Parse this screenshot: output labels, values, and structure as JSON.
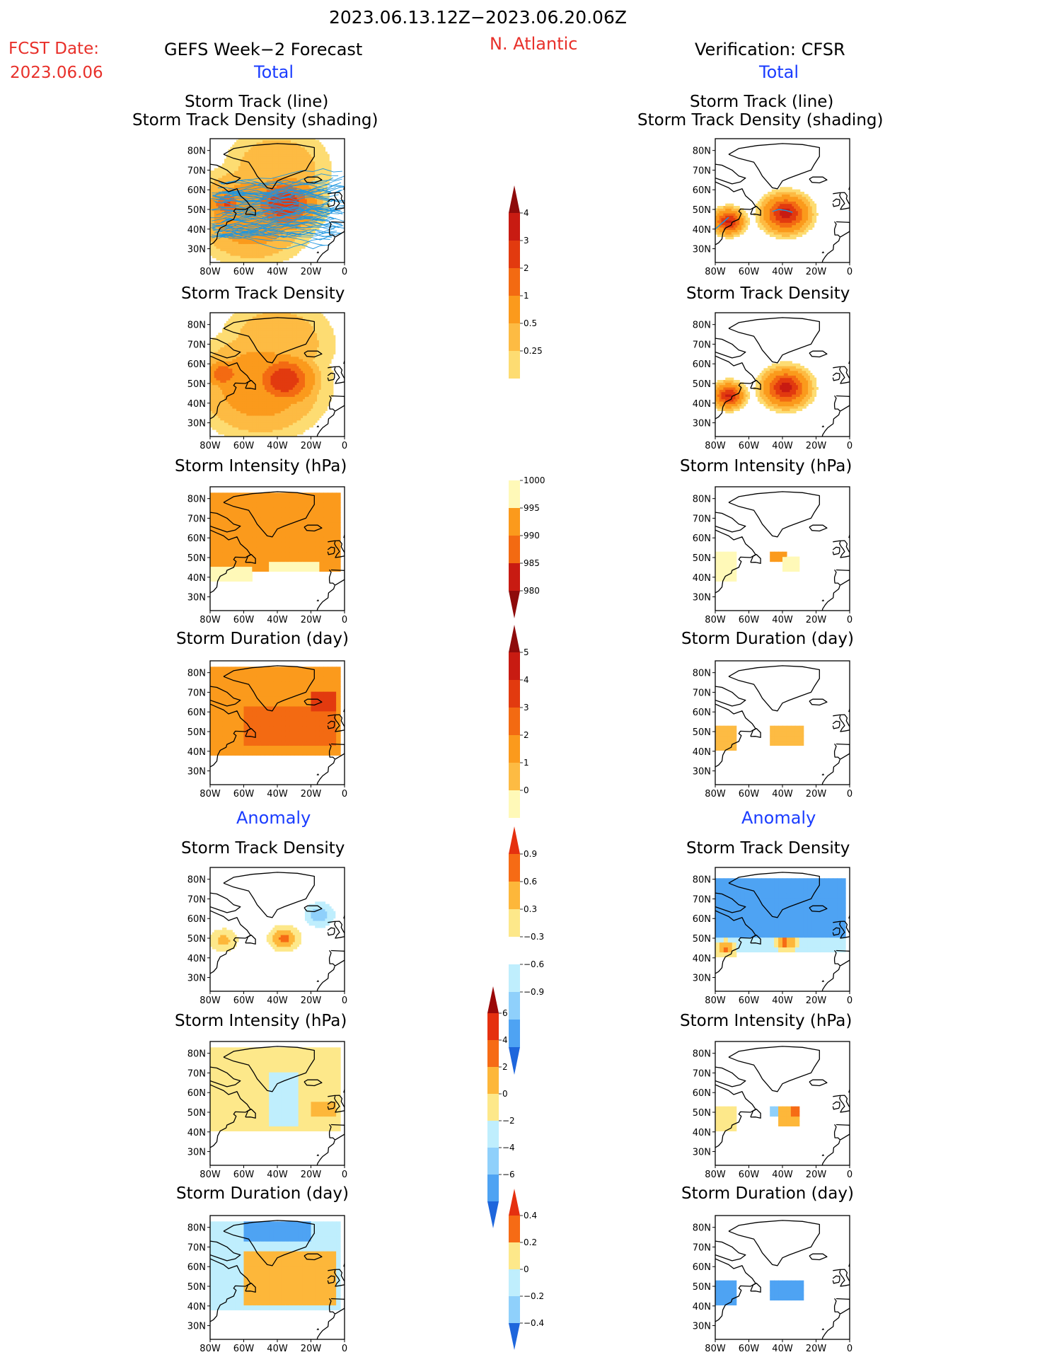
{
  "header": {
    "period": "2023.06.13.12Z−2023.06.20.06Z",
    "region": "N. Atlantic",
    "fcst_label": "FCST Date:",
    "fcst_date": "2023.06.06",
    "left_title": "GEFS Week−2 Forecast",
    "right_title": "Verification: CFSR",
    "total_label": "Total",
    "anomaly_label": "Anomaly"
  },
  "panel_titles": {
    "track_line": "Storm Track (line)",
    "track_shading": "Storm Track Density (shading)",
    "density": "Storm Track Density",
    "intensity": "Storm Intensity (hPa)",
    "duration": "Storm Duration (day)"
  },
  "axes": {
    "lat_ticks": [
      "80N",
      "70N",
      "60N",
      "50N",
      "40N",
      "30N"
    ],
    "lon_ticks": [
      "80W",
      "60W",
      "40W",
      "20W",
      "0"
    ],
    "lat_range": [
      23,
      86
    ],
    "lon_range": [
      -80,
      0
    ]
  },
  "colors": {
    "seq": [
      "#fff9b8",
      "#fddc72",
      "#fdbb43",
      "#fb9a1c",
      "#f36a12",
      "#e23a0f",
      "#c81b12",
      "#8e0b0b"
    ],
    "div_pos": [
      "#fde88a",
      "#fdb73a",
      "#f66b15",
      "#e5300f",
      "#9a0808"
    ],
    "div_neg": [
      "#bfeefd",
      "#8fd0fb",
      "#4ea3f3",
      "#1e66dc"
    ],
    "track": "#1e96e0"
  },
  "chart_data": [
    {
      "type": "heatmap",
      "name": "total_track_density_lines_gefs",
      "title": "Storm Track (line)",
      "subtitle": "Storm Track Density (shading)",
      "scale": "density",
      "blobs": [
        {
          "lon": -36,
          "lat": 53,
          "r": 18,
          "v": 4
        },
        {
          "lon": -70,
          "lat": 53,
          "r": 10,
          "v": 3.2
        },
        {
          "lon": -40,
          "lat": 70,
          "r": 30,
          "v": 1
        },
        {
          "lon": -55,
          "lat": 48,
          "r": 30,
          "v": 2
        }
      ]
    },
    {
      "type": "heatmap",
      "name": "total_track_density_lines_cfsr",
      "title": "Storm Track (line)",
      "subtitle": "Storm Track Density (shading)",
      "scale": "density",
      "blobs": [
        {
          "lon": -38,
          "lat": 48,
          "r": 12,
          "v": 4.5
        },
        {
          "lon": -72,
          "lat": 44,
          "r": 8,
          "v": 4.2
        }
      ]
    },
    {
      "type": "heatmap",
      "name": "total_density_gefs",
      "title": "Storm Track Density",
      "scale": "density",
      "blobs": [
        {
          "lon": -36,
          "lat": 52,
          "r": 17,
          "v": 4
        },
        {
          "lon": -72,
          "lat": 55,
          "r": 10,
          "v": 3
        },
        {
          "lon": -40,
          "lat": 70,
          "r": 32,
          "v": 1
        },
        {
          "lon": -50,
          "lat": 50,
          "r": 34,
          "v": 1.8
        }
      ]
    },
    {
      "type": "heatmap",
      "name": "total_density_cfsr",
      "title": "Storm Track Density",
      "scale": "density",
      "blobs": [
        {
          "lon": -38,
          "lat": 48,
          "r": 12,
          "v": 4.5
        },
        {
          "lon": -72,
          "lat": 44,
          "r": 8,
          "v": 4.2
        }
      ]
    },
    {
      "type": "heatmap",
      "name": "total_intensity_gefs",
      "title": "Storm Intensity (hPa)",
      "scale": "intensity",
      "regions": [
        {
          "lon": [
            -80,
            -2
          ],
          "lat": [
            42,
            84
          ],
          "v": 992
        },
        {
          "lon": [
            -80,
            -55
          ],
          "lat": [
            37,
            45
          ],
          "v": 997
        },
        {
          "lon": [
            -45,
            -15
          ],
          "lat": [
            42,
            48
          ],
          "v": 996
        }
      ]
    },
    {
      "type": "heatmap",
      "name": "total_intensity_cfsr",
      "title": "Storm Intensity (hPa)",
      "scale": "intensity",
      "regions": [
        {
          "lon": [
            -80,
            -68
          ],
          "lat": [
            38,
            52
          ],
          "v": 997
        },
        {
          "lon": [
            -48,
            -37
          ],
          "lat": [
            47,
            52
          ],
          "v": 992
        },
        {
          "lon": [
            -40,
            -30
          ],
          "lat": [
            43,
            50
          ],
          "v": 997
        }
      ]
    },
    {
      "type": "heatmap",
      "name": "total_duration_gefs",
      "title": "Storm Duration (day)",
      "scale": "duration",
      "regions": [
        {
          "lon": [
            -80,
            -2
          ],
          "lat": [
            38,
            84
          ],
          "v": 2.5
        },
        {
          "lon": [
            -60,
            -5
          ],
          "lat": [
            42,
            64
          ],
          "v": 3.5
        },
        {
          "lon": [
            -20,
            -5
          ],
          "lat": [
            60,
            70
          ],
          "v": 4.3
        }
      ]
    },
    {
      "type": "heatmap",
      "name": "total_duration_cfsr",
      "title": "Storm Duration (day)",
      "scale": "duration",
      "regions": [
        {
          "lon": [
            -80,
            -68
          ],
          "lat": [
            40,
            52
          ],
          "v": 1.5
        },
        {
          "lon": [
            -48,
            -28
          ],
          "lat": [
            44,
            52
          ],
          "v": 1.5
        }
      ]
    },
    {
      "type": "heatmap",
      "name": "anom_density_gefs",
      "title": "Storm Track Density",
      "scale": "anom_density",
      "blobs": [
        {
          "lon": -36,
          "lat": 50,
          "r": 10,
          "v": 1.0
        },
        {
          "lon": -72,
          "lat": 49,
          "r": 10,
          "v": 0.7
        },
        {
          "lon": -15,
          "lat": 62,
          "r": 10,
          "v": -0.8
        },
        {
          "lon": -55,
          "lat": 62,
          "r": 12,
          "v": -0.2
        }
      ]
    },
    {
      "type": "heatmap",
      "name": "anom_density_cfsr",
      "title": "Storm Track Density",
      "scale": "anom_density",
      "regions": [
        {
          "lon": [
            -80,
            -2
          ],
          "lat": [
            50,
            80
          ],
          "v": -0.95
        },
        {
          "lon": [
            -80,
            -2
          ],
          "lat": [
            43,
            50
          ],
          "v": -0.4
        }
      ],
      "blobs": [
        {
          "lon": -38,
          "lat": 48,
          "r": 8,
          "v": 1.0
        },
        {
          "lon": -74,
          "lat": 45,
          "r": 7,
          "v": 1.0
        }
      ]
    },
    {
      "type": "heatmap",
      "name": "anom_intensity_gefs",
      "title": "Storm Intensity (hPa)",
      "scale": "anom_intensity",
      "regions": [
        {
          "lon": [
            -80,
            -2
          ],
          "lat": [
            40,
            84
          ],
          "v": 1
        },
        {
          "lon": [
            -45,
            -28
          ],
          "lat": [
            42,
            70
          ],
          "v": -1
        },
        {
          "lon": [
            -20,
            -5
          ],
          "lat": [
            47,
            56
          ],
          "v": 3
        }
      ]
    },
    {
      "type": "heatmap",
      "name": "anom_intensity_cfsr",
      "title": "Storm Intensity (hPa)",
      "scale": "anom_intensity",
      "regions": [
        {
          "lon": [
            -80,
            -68
          ],
          "lat": [
            40,
            52
          ],
          "v": 1
        },
        {
          "lon": [
            -48,
            -43
          ],
          "lat": [
            47,
            52
          ],
          "v": -2.5
        },
        {
          "lon": [
            -43,
            -30
          ],
          "lat": [
            44,
            52
          ],
          "v": 2
        },
        {
          "lon": [
            -35,
            -30
          ],
          "lat": [
            49,
            52
          ],
          "v": 5
        }
      ]
    },
    {
      "type": "heatmap",
      "name": "anom_duration_gefs",
      "title": "Storm Duration (day)",
      "scale": "anom_duration",
      "regions": [
        {
          "lon": [
            -80,
            -2
          ],
          "lat": [
            38,
            84
          ],
          "v": -0.1
        },
        {
          "lon": [
            -60,
            -5
          ],
          "lat": [
            40,
            68
          ],
          "v": 0.35
        },
        {
          "lon": [
            -60,
            -20
          ],
          "lat": [
            72,
            84
          ],
          "v": -0.4
        }
      ],
      "blobs": [
        {
          "lon": -25,
          "lat": 48,
          "r": 6,
          "v": 0.1
        }
      ]
    },
    {
      "type": "heatmap",
      "name": "anom_duration_cfsr",
      "title": "Storm Duration (day)",
      "scale": "anom_duration",
      "regions": [
        {
          "lon": [
            -80,
            -68
          ],
          "lat": [
            40,
            52
          ],
          "v": -0.4
        },
        {
          "lon": [
            -48,
            -28
          ],
          "lat": [
            44,
            52
          ],
          "v": -0.4
        }
      ]
    }
  ],
  "legends": {
    "density": [
      "4",
      "3",
      "2",
      "1",
      "0.5",
      "0.25"
    ],
    "intensity": [
      "1000",
      "995",
      "990",
      "985",
      "980"
    ],
    "duration": [
      "5",
      "4",
      "3",
      "2",
      "1",
      "0"
    ],
    "anom_density": [
      "0.9",
      "0.6",
      "0.3",
      "−0.3",
      "−0.6",
      "−0.9"
    ],
    "anom_intensity": [
      "6",
      "4",
      "2",
      "0",
      "−2",
      "−4",
      "−6"
    ],
    "anom_duration": [
      "0.4",
      "0.2",
      "0",
      "−0.2",
      "−0.4"
    ]
  }
}
